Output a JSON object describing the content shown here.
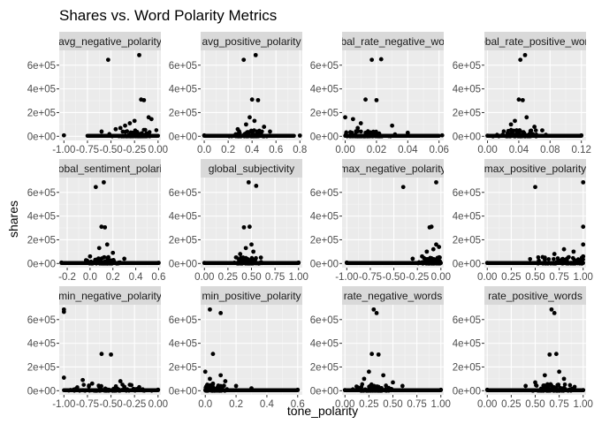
{
  "chart_data": {
    "type": "scatter",
    "title": "Shares vs. Word Polarity Metrics",
    "xlabel": "tone_polarity",
    "ylabel": "shares",
    "facet_layout": "3 rows x 4 columns, free x scales",
    "grid": true,
    "background_color": "#ebebeb",
    "strip_color": "#d9d9d9",
    "point_color": "#000000",
    "y_ticks": [
      0,
      200000,
      400000,
      600000
    ],
    "y_tick_labels": [
      "0e+00",
      "2e+05",
      "4e+05",
      "6e+05"
    ],
    "ylim": [
      -35000,
      725000
    ],
    "panels": [
      {
        "strip": "avg_negative_polarity",
        "xlim": [
          -1.05,
          0.03
        ],
        "x_ticks": [
          -1.0,
          -0.75,
          -0.5,
          -0.25,
          0.0
        ],
        "x_tick_labels": [
          "-1.00",
          "-0.75",
          "-0.50",
          "-0.25",
          "0.00"
        ],
        "mass": {
          "x": [
            -0.75,
            0.0
          ],
          "center": -0.25,
          "spread": 0.14,
          "count": 85
        },
        "points": [
          [
            -0.53,
            645000
          ],
          [
            -0.2,
            685000
          ],
          [
            -0.18,
            310000
          ],
          [
            -0.15,
            305000
          ],
          [
            -1.0,
            8000
          ],
          [
            -0.07,
            145000
          ],
          [
            -0.1,
            160000
          ],
          [
            -0.3,
            110000
          ],
          [
            -0.25,
            130000
          ],
          [
            -0.4,
            70000
          ],
          [
            -0.35,
            90000
          ],
          [
            -0.6,
            40000
          ],
          [
            -0.45,
            60000
          ]
        ]
      },
      {
        "strip": "avg_positive_polarity",
        "xlim": [
          -0.03,
          0.82
        ],
        "x_ticks": [
          0.0,
          0.2,
          0.4,
          0.6,
          0.8
        ],
        "x_tick_labels": [
          "0.0",
          "0.2",
          "0.4",
          "0.6",
          "0.8"
        ],
        "mass": {
          "x": [
            0.0,
            0.75
          ],
          "center": 0.37,
          "spread": 0.1,
          "count": 85
        },
        "points": [
          [
            0.33,
            645000
          ],
          [
            0.43,
            685000
          ],
          [
            0.4,
            310000
          ],
          [
            0.45,
            305000
          ],
          [
            0.0,
            8000
          ],
          [
            0.8,
            6000
          ],
          [
            0.38,
            160000
          ],
          [
            0.42,
            130000
          ],
          [
            0.35,
            100000
          ],
          [
            0.5,
            80000
          ],
          [
            0.28,
            60000
          ],
          [
            0.55,
            40000
          ]
        ]
      },
      {
        "strip": "global_rate_negative_words",
        "xlim": [
          -0.002,
          0.063
        ],
        "x_ticks": [
          0.0,
          0.02,
          0.04,
          0.06
        ],
        "x_tick_labels": [
          "0.00",
          "0.02",
          "0.04",
          "0.06"
        ],
        "mass": {
          "x": [
            0.0,
            0.06
          ],
          "center": 0.014,
          "spread": 0.01,
          "count": 85
        },
        "points": [
          [
            0.017,
            645000
          ],
          [
            0.023,
            650000
          ],
          [
            0.013,
            310000
          ],
          [
            0.02,
            305000
          ],
          [
            0.0,
            160000
          ],
          [
            0.005,
            145000
          ],
          [
            0.062,
            8000
          ],
          [
            0.03,
            90000
          ],
          [
            0.01,
            110000
          ],
          [
            0.008,
            70000
          ],
          [
            0.04,
            30000
          ]
        ]
      },
      {
        "strip": "global_rate_positive_words",
        "xlim": [
          -0.004,
          0.126
        ],
        "x_ticks": [
          0.0,
          0.04,
          0.08,
          0.12
        ],
        "x_tick_labels": [
          "0.00",
          "0.04",
          "0.08",
          "0.12"
        ],
        "mass": {
          "x": [
            0.0,
            0.12
          ],
          "center": 0.04,
          "spread": 0.018,
          "count": 85
        },
        "points": [
          [
            0.042,
            645000
          ],
          [
            0.048,
            685000
          ],
          [
            0.04,
            310000
          ],
          [
            0.045,
            305000
          ],
          [
            0.05,
            160000
          ],
          [
            0.035,
            130000
          ],
          [
            0.12,
            8000
          ],
          [
            0.0,
            5000
          ],
          [
            0.06,
            80000
          ],
          [
            0.03,
            100000
          ],
          [
            0.07,
            50000
          ]
        ]
      },
      {
        "strip": "global_sentiment_polarity",
        "xlim": [
          -0.27,
          0.62
        ],
        "x_ticks": [
          -0.2,
          0.0,
          0.2,
          0.4,
          0.6
        ],
        "x_tick_labels": [
          "-0.2",
          "0.0",
          "0.2",
          "0.4",
          "0.6"
        ],
        "mass": {
          "x": [
            -0.25,
            0.6
          ],
          "center": 0.12,
          "spread": 0.1,
          "count": 90
        },
        "points": [
          [
            0.05,
            645000
          ],
          [
            0.12,
            685000
          ],
          [
            0.1,
            310000
          ],
          [
            0.13,
            305000
          ],
          [
            -0.25,
            8000
          ],
          [
            0.6,
            6000
          ],
          [
            0.15,
            160000
          ],
          [
            0.08,
            130000
          ],
          [
            0.2,
            90000
          ],
          [
            0.0,
            60000
          ],
          [
            0.3,
            40000
          ]
        ]
      },
      {
        "strip": "global_subjectivity",
        "xlim": [
          -0.04,
          1.04
        ],
        "x_ticks": [
          0.0,
          0.25,
          0.5,
          0.75,
          1.0
        ],
        "x_tick_labels": [
          "0.00",
          "0.25",
          "0.50",
          "0.75",
          "1.00"
        ],
        "mass": {
          "x": [
            0.0,
            1.0
          ],
          "center": 0.45,
          "spread": 0.09,
          "count": 90
        },
        "points": [
          [
            0.47,
            685000
          ],
          [
            0.55,
            655000
          ],
          [
            0.48,
            310000
          ],
          [
            0.42,
            305000
          ],
          [
            1.0,
            8000
          ],
          [
            0.0,
            5000
          ],
          [
            0.5,
            160000
          ],
          [
            0.44,
            130000
          ],
          [
            0.52,
            100000
          ],
          [
            0.38,
            80000
          ],
          [
            0.6,
            50000
          ]
        ]
      },
      {
        "strip": "max_negative_polarity",
        "xlim": [
          -1.05,
          0.03
        ],
        "x_ticks": [
          -1.0,
          -0.75,
          -0.5,
          -0.25,
          0.0
        ],
        "x_tick_labels": [
          "-1.00",
          "-0.75",
          "-0.50",
          "-0.25",
          "0.00"
        ],
        "mass": {
          "x": [
            -1.0,
            0.0
          ],
          "center": -0.1,
          "spread": 0.1,
          "count": 90
        },
        "points": [
          [
            -0.4,
            645000
          ],
          [
            -0.05,
            685000
          ],
          [
            -0.1,
            310000
          ],
          [
            -0.12,
            305000
          ],
          [
            -1.0,
            8000
          ],
          [
            -0.05,
            160000
          ],
          [
            -0.08,
            120000
          ],
          [
            -0.15,
            100000
          ],
          [
            -0.02,
            140000
          ],
          [
            -0.2,
            60000
          ],
          [
            -0.3,
            40000
          ]
        ]
      },
      {
        "strip": "max_positive_polarity",
        "xlim": [
          -0.03,
          1.03
        ],
        "x_ticks": [
          0.0,
          0.25,
          0.5,
          0.75,
          1.0
        ],
        "x_tick_labels": [
          "0.00",
          "0.25",
          "0.50",
          "0.75",
          "1.00"
        ],
        "mass": {
          "x": [
            0.0,
            1.0
          ],
          "center": 0.85,
          "spread": 0.25,
          "count": 80
        },
        "points": [
          [
            0.5,
            645000
          ],
          [
            1.0,
            685000
          ],
          [
            1.0,
            310000
          ],
          [
            0.0,
            5000
          ],
          [
            1.0,
            160000
          ],
          [
            0.8,
            120000
          ],
          [
            0.7,
            80000
          ],
          [
            0.9,
            100000
          ],
          [
            0.6,
            50000
          ],
          [
            1.0,
            60000
          ]
        ]
      },
      {
        "strip": "min_negative_polarity",
        "xlim": [
          -1.05,
          0.03
        ],
        "x_ticks": [
          -1.0,
          -0.75,
          -0.5,
          -0.25,
          0.0
        ],
        "x_tick_labels": [
          "-1.00",
          "-0.75",
          "-0.50",
          "-0.25",
          "0.00"
        ],
        "mass": {
          "x": [
            -1.0,
            0.0
          ],
          "center": -0.5,
          "spread": 0.3,
          "count": 80
        },
        "points": [
          [
            -1.0,
            685000
          ],
          [
            -1.0,
            665000
          ],
          [
            -0.6,
            310000
          ],
          [
            -0.5,
            305000
          ],
          [
            -1.0,
            110000
          ],
          [
            -0.8,
            90000
          ],
          [
            -0.4,
            80000
          ],
          [
            -0.7,
            60000
          ],
          [
            0.0,
            8000
          ],
          [
            -0.3,
            50000
          ],
          [
            -0.2,
            30000
          ]
        ]
      },
      {
        "strip": "min_positive_polarity",
        "xlim": [
          -0.03,
          0.63
        ],
        "x_ticks": [
          0.0,
          0.2,
          0.4,
          0.6
        ],
        "x_tick_labels": [
          "0.0",
          "0.2",
          "0.4",
          "0.6"
        ],
        "mass": {
          "x": [
            0.0,
            0.6
          ],
          "center": 0.05,
          "spread": 0.05,
          "count": 80
        },
        "points": [
          [
            0.03,
            685000
          ],
          [
            0.1,
            655000
          ],
          [
            0.05,
            310000
          ],
          [
            0.0,
            160000
          ],
          [
            0.1,
            130000
          ],
          [
            0.6,
            8000
          ],
          [
            0.03,
            100000
          ],
          [
            0.13,
            80000
          ],
          [
            0.2,
            40000
          ],
          [
            0.05,
            60000
          ],
          [
            0.3,
            20000
          ]
        ]
      },
      {
        "strip": "rate_negative_words",
        "xlim": [
          -0.03,
          1.03
        ],
        "x_ticks": [
          0.0,
          0.25,
          0.5,
          0.75,
          1.0
        ],
        "x_tick_labels": [
          "0.00",
          "0.25",
          "0.50",
          "0.75",
          "1.00"
        ],
        "mass": {
          "x": [
            0.0,
            1.0
          ],
          "center": 0.3,
          "spread": 0.15,
          "count": 90
        },
        "points": [
          [
            0.3,
            685000
          ],
          [
            0.33,
            655000
          ],
          [
            0.28,
            310000
          ],
          [
            0.35,
            305000
          ],
          [
            1.0,
            8000
          ],
          [
            0.0,
            5000
          ],
          [
            0.25,
            160000
          ],
          [
            0.4,
            130000
          ],
          [
            0.2,
            100000
          ],
          [
            0.5,
            70000
          ],
          [
            0.6,
            40000
          ]
        ]
      },
      {
        "strip": "rate_positive_words",
        "xlim": [
          -0.03,
          1.03
        ],
        "x_ticks": [
          0.0,
          0.25,
          0.5,
          0.75,
          1.0
        ],
        "x_tick_labels": [
          "0.00",
          "0.25",
          "0.50",
          "0.75",
          "1.00"
        ],
        "mass": {
          "x": [
            0.0,
            1.0
          ],
          "center": 0.7,
          "spread": 0.15,
          "count": 90
        },
        "points": [
          [
            0.67,
            685000
          ],
          [
            0.7,
            655000
          ],
          [
            0.72,
            310000
          ],
          [
            0.65,
            305000
          ],
          [
            0.0,
            8000
          ],
          [
            1.0,
            5000
          ],
          [
            0.75,
            160000
          ],
          [
            0.6,
            130000
          ],
          [
            0.8,
            100000
          ],
          [
            0.5,
            70000
          ],
          [
            0.4,
            40000
          ]
        ]
      }
    ]
  }
}
